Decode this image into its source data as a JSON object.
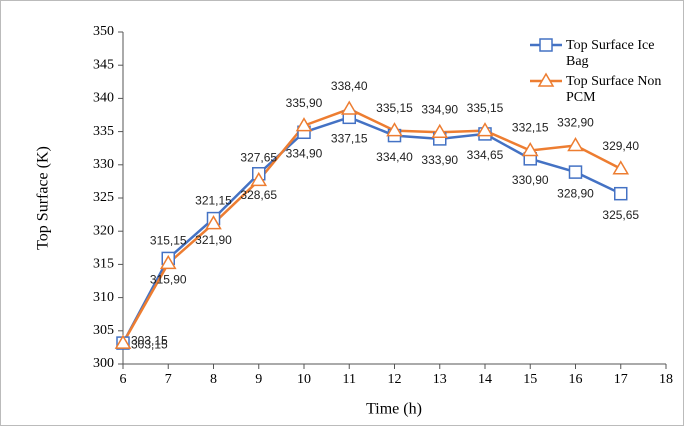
{
  "chart_data": {
    "type": "line",
    "x_label": "Time (h)",
    "y_label": "Top Surface (K)",
    "x": [
      6,
      7,
      8,
      9,
      10,
      11,
      12,
      13,
      14,
      15,
      16,
      17
    ],
    "xlim": [
      6,
      18
    ],
    "xticks": [
      6,
      7,
      8,
      9,
      10,
      11,
      12,
      13,
      14,
      15,
      16,
      17,
      18
    ],
    "ylim": [
      300,
      350
    ],
    "yticks": [
      300,
      305,
      310,
      315,
      320,
      325,
      330,
      335,
      340,
      345,
      350
    ],
    "grid": false,
    "legend": "upper right",
    "series": [
      {
        "name": "Top Surface Ice Bag",
        "color": "#4472c4",
        "marker": "square",
        "values": [
          303.15,
          315.9,
          321.9,
          328.65,
          334.9,
          337.15,
          334.4,
          333.9,
          334.65,
          330.9,
          328.9,
          325.65
        ],
        "value_labels": [
          "303,15",
          "315,90",
          "321,90",
          "328,65",
          "334,90",
          "337,15",
          "334,40",
          "333,90",
          "334,65",
          "330,90",
          "328,90",
          "325,65"
        ]
      },
      {
        "name": "Top Surface Non PCM",
        "color": "#ed7d31",
        "marker": "triangle",
        "values": [
          303.15,
          315.15,
          321.15,
          327.65,
          335.9,
          338.4,
          335.15,
          334.9,
          335.15,
          332.15,
          332.9,
          329.4
        ],
        "value_labels": [
          "303,15",
          "315,15",
          "321,15",
          "327,65",
          "335,90",
          "338,40",
          "335,15",
          "334,90",
          "335,15",
          "332,15",
          "332,90",
          "329,40"
        ]
      }
    ]
  }
}
